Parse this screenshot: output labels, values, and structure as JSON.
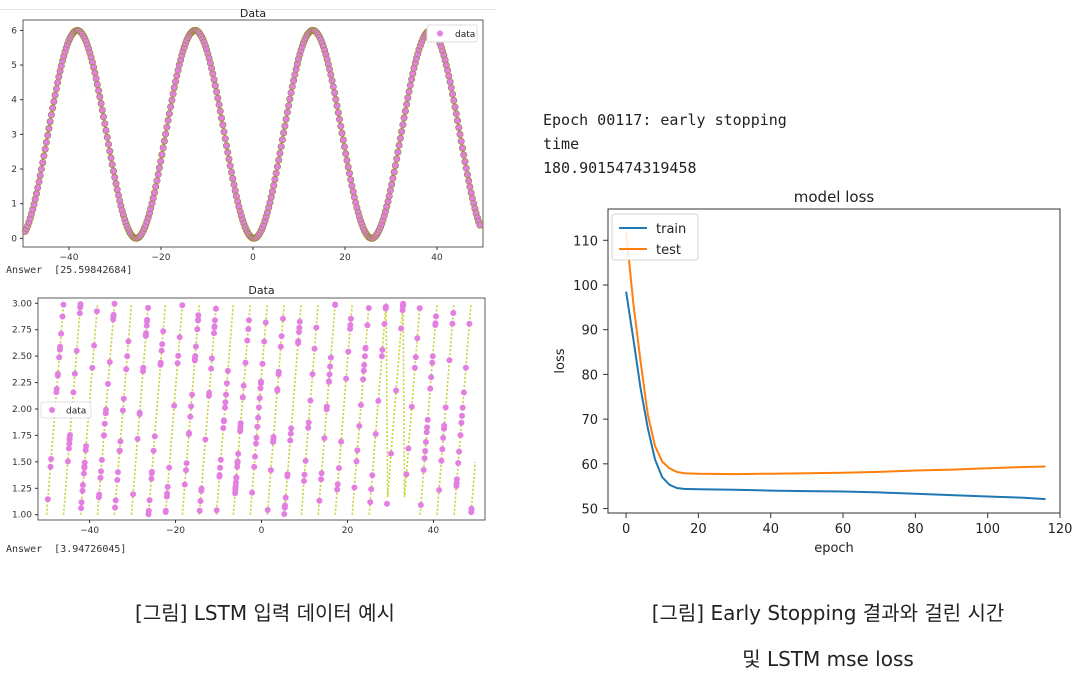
{
  "log": {
    "epoch_line": "Epoch 00117: early stopping",
    "time_label": "time",
    "time_value": "180.9015474319458"
  },
  "captions": {
    "left": "[그림] LSTM 입력 데이터 예시",
    "right_line1": "[그림] Early Stopping 결과와 걸린 시간",
    "right_line2": "및 LSTM mse loss"
  },
  "chart_data": [
    {
      "type": "scatter",
      "title": "Data",
      "legend": [
        "data"
      ],
      "legend_position": "top-right",
      "answer_label": "Answer",
      "answer_value": "[25.59842684]",
      "xlim": [
        -50,
        50
      ],
      "ylim": [
        0,
        6
      ],
      "xticks": [
        -40,
        -20,
        0,
        20,
        40
      ],
      "yticks": [
        0,
        1,
        2,
        3,
        4,
        5,
        6
      ],
      "curve": "3 - 3*sin(2*pi*(x+6.2)/25.6)",
      "colors": {
        "points": "#e27fe0",
        "line": "#c9cf36",
        "edge": "#8c8c20"
      }
    },
    {
      "type": "scatter",
      "title": "Data",
      "legend": [
        "data"
      ],
      "legend_position": "center-left",
      "answer_label": "Answer",
      "answer_value": "[3.94726045]",
      "xlim": [
        -50,
        50
      ],
      "ylim": [
        1.0,
        3.0
      ],
      "xticks": [
        -40,
        -20,
        0,
        20,
        40
      ],
      "yticks": [
        1.0,
        1.25,
        1.5,
        1.75,
        2.0,
        2.25,
        2.5,
        2.75,
        3.0
      ],
      "curve": "sawtooth period 3.95 ranging 1 to 3",
      "colors": {
        "points": "#e27fe0",
        "line": "#c9cf36"
      }
    },
    {
      "type": "line",
      "title": "model loss",
      "xlabel": "epoch",
      "ylabel": "loss",
      "legend_position": "top-left",
      "xlim": [
        -5,
        120
      ],
      "ylim": [
        49,
        117
      ],
      "xticks": [
        0,
        20,
        40,
        60,
        80,
        100,
        120
      ],
      "yticks": [
        50,
        60,
        70,
        80,
        90,
        100,
        110
      ],
      "epochs": [
        0,
        2,
        4,
        6,
        8,
        10,
        12,
        14,
        16,
        20,
        30,
        40,
        50,
        60,
        70,
        80,
        90,
        100,
        110,
        116
      ],
      "series": [
        {
          "name": "train",
          "color": "#1f77b4",
          "values": [
            98.5,
            88,
            77,
            68,
            61,
            57,
            55.3,
            54.6,
            54.4,
            54.3,
            54.2,
            54.0,
            53.9,
            53.8,
            53.6,
            53.3,
            53.0,
            52.7,
            52.4,
            52.1
          ]
        },
        {
          "name": "test",
          "color": "#ff7f0e",
          "values": [
            112,
            96,
            83,
            71,
            64,
            60.5,
            59,
            58.2,
            57.9,
            57.8,
            57.7,
            57.8,
            57.9,
            58.0,
            58.2,
            58.5,
            58.7,
            59.0,
            59.3,
            59.4
          ]
        }
      ]
    }
  ]
}
